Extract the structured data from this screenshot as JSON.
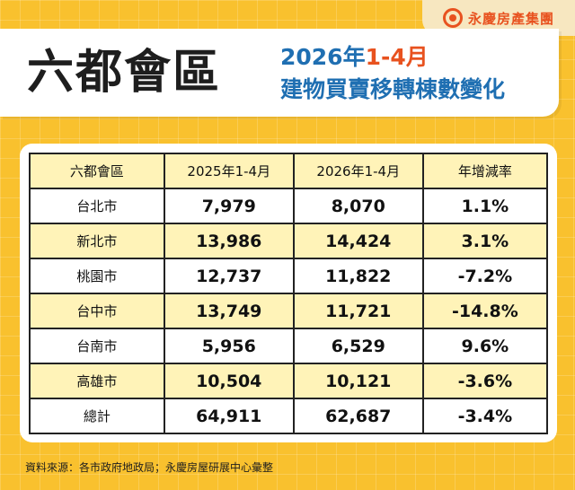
{
  "brand": {
    "name": "永慶房產集團",
    "logo_icon": "yungching-logo-icon"
  },
  "header": {
    "main_title": "六都會區",
    "sub_line1_year": "2026年",
    "sub_line1_range": "1-4月",
    "sub_line2": "建物買賣移轉棟數變化"
  },
  "table": {
    "headers": [
      "六都會區",
      "2025年1-4月",
      "2026年1-4月",
      "年增減率"
    ],
    "rows": [
      [
        "台北市",
        "7,979",
        "8,070",
        "1.1%"
      ],
      [
        "新北市",
        "13,986",
        "14,424",
        "3.1%"
      ],
      [
        "桃園市",
        "12,737",
        "11,822",
        "-7.2%"
      ],
      [
        "台中市",
        "13,749",
        "11,721",
        "-14.8%"
      ],
      [
        "台南市",
        "5,956",
        "6,529",
        "9.6%"
      ],
      [
        "高雄市",
        "10,504",
        "10,121",
        "-3.6%"
      ],
      [
        "總計",
        "64,911",
        "62,687",
        "-3.4%"
      ]
    ]
  },
  "footer": {
    "source": "資料來源：各市政府地政局；永慶房屋研展中心彙整"
  },
  "colors": {
    "background": "#f9c12e",
    "accent_orange": "#e8521f",
    "accent_blue": "#1f6fb2",
    "row_highlight": "#fff3b8"
  }
}
